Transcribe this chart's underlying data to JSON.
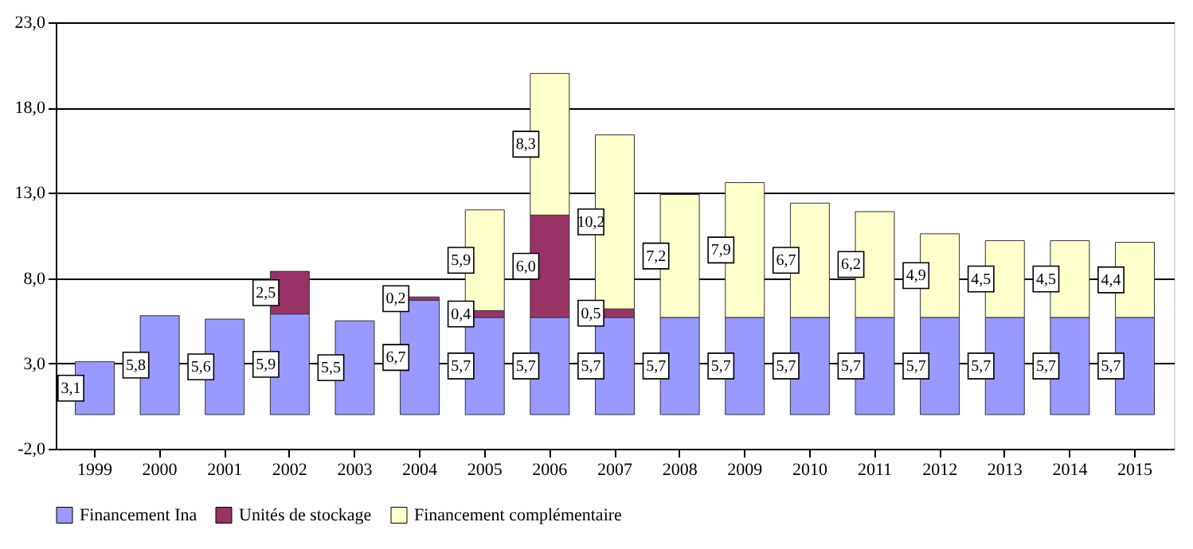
{
  "chart_data": {
    "type": "bar",
    "stacked": true,
    "data_labels": true,
    "grid": "y",
    "legend": "bottom",
    "categories": [
      "1999",
      "2000",
      "2001",
      "2002",
      "2003",
      "2004",
      "2005",
      "2006",
      "2007",
      "2008",
      "2009",
      "2010",
      "2011",
      "2012",
      "2013",
      "2014",
      "2015"
    ],
    "ylim": [
      -2,
      23
    ],
    "yticks": [
      {
        "value": -2,
        "label": "-2,0"
      },
      {
        "value": 3,
        "label": "3,0"
      },
      {
        "value": 8,
        "label": "8,0"
      },
      {
        "value": 13,
        "label": "13,0"
      },
      {
        "value": 18,
        "label": "18,0"
      },
      {
        "value": 23,
        "label": "23,0"
      }
    ],
    "series": [
      {
        "name": "Financement Ina",
        "color": "#9999ff",
        "values": [
          3.1,
          5.8,
          5.6,
          5.9,
          5.5,
          6.7,
          5.7,
          5.7,
          5.7,
          5.7,
          5.7,
          5.7,
          5.7,
          5.7,
          5.7,
          5.7,
          5.7
        ],
        "value_labels": [
          "3,1",
          "5,8",
          "5,6",
          "5,9",
          "5,5",
          "6,7",
          "5,7",
          "5,7",
          "5,7",
          "5,7",
          "5,7",
          "5,7",
          "5,7",
          "5,7",
          "5,7",
          "5,7",
          "5,7"
        ]
      },
      {
        "name": "Unités de stockage",
        "color": "#993366",
        "values": [
          null,
          null,
          null,
          2.5,
          null,
          0.2,
          0.4,
          6.0,
          0.5,
          null,
          null,
          null,
          null,
          null,
          null,
          null,
          null
        ],
        "value_labels": [
          null,
          null,
          null,
          "2,5",
          null,
          "0,2",
          "0,4",
          "6,0",
          "0,5",
          null,
          null,
          null,
          null,
          null,
          null,
          null,
          null
        ]
      },
      {
        "name": "Financement complémentaire",
        "color": "#ffffcc",
        "values": [
          null,
          null,
          null,
          null,
          null,
          null,
          5.9,
          8.3,
          10.2,
          7.2,
          7.9,
          6.7,
          6.2,
          4.9,
          4.5,
          4.5,
          4.4
        ],
        "value_labels": [
          null,
          null,
          null,
          null,
          null,
          null,
          "5,9",
          "8,3",
          "10,2",
          "7,2",
          "7,9",
          "6,7",
          "6,2",
          "4,9",
          "4,5",
          "4,5",
          "4,4"
        ]
      }
    ]
  }
}
